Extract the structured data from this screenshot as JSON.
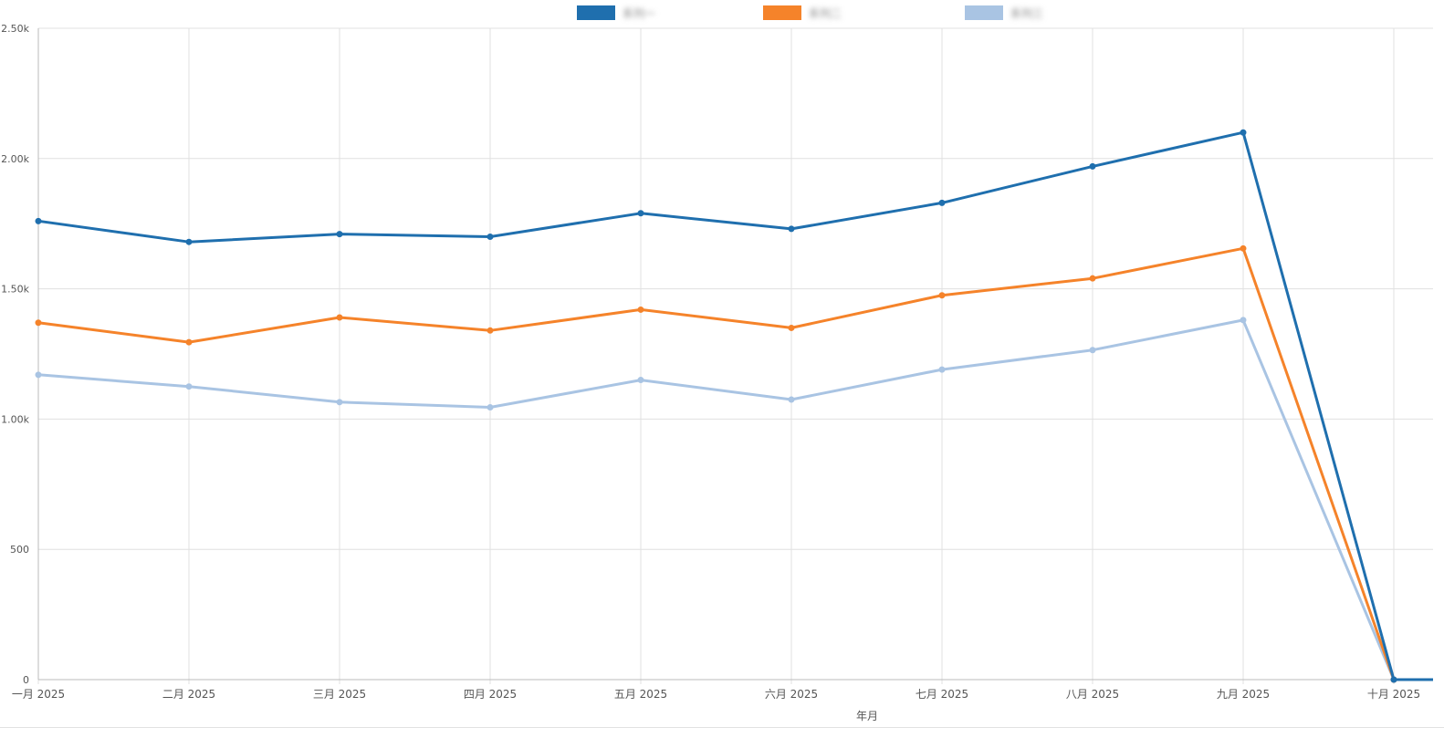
{
  "chart_data": {
    "type": "line",
    "title": "",
    "xlabel": "年月",
    "ylabel": "",
    "ylim": [
      0,
      2500
    ],
    "y_ticks": [
      {
        "value": 0,
        "label": "0"
      },
      {
        "value": 500,
        "label": "500"
      },
      {
        "value": 1000,
        "label": "1.00k"
      },
      {
        "value": 1500,
        "label": "1.50k"
      },
      {
        "value": 2000,
        "label": "2.00k"
      },
      {
        "value": 2500,
        "label": "2.50k"
      }
    ],
    "categories": [
      "一月 2025",
      "二月 2025",
      "三月 2025",
      "四月 2025",
      "五月 2025",
      "六月 2025",
      "七月 2025",
      "八月 2025",
      "九月 2025",
      "十月 2025"
    ],
    "grid": true,
    "legend_position": "top-center",
    "series": [
      {
        "name": "系列一",
        "color": "#1f6fae",
        "values": [
          1760,
          1680,
          1710,
          1700,
          1790,
          1730,
          1830,
          1970,
          2100,
          0
        ]
      },
      {
        "name": "系列二",
        "color": "#f5832a",
        "values": [
          1370,
          1295,
          1390,
          1340,
          1420,
          1350,
          1475,
          1540,
          1655,
          0
        ]
      },
      {
        "name": "系列三",
        "color": "#a9c4e3",
        "values": [
          1170,
          1125,
          1065,
          1045,
          1150,
          1075,
          1190,
          1265,
          1380,
          0
        ]
      }
    ]
  }
}
